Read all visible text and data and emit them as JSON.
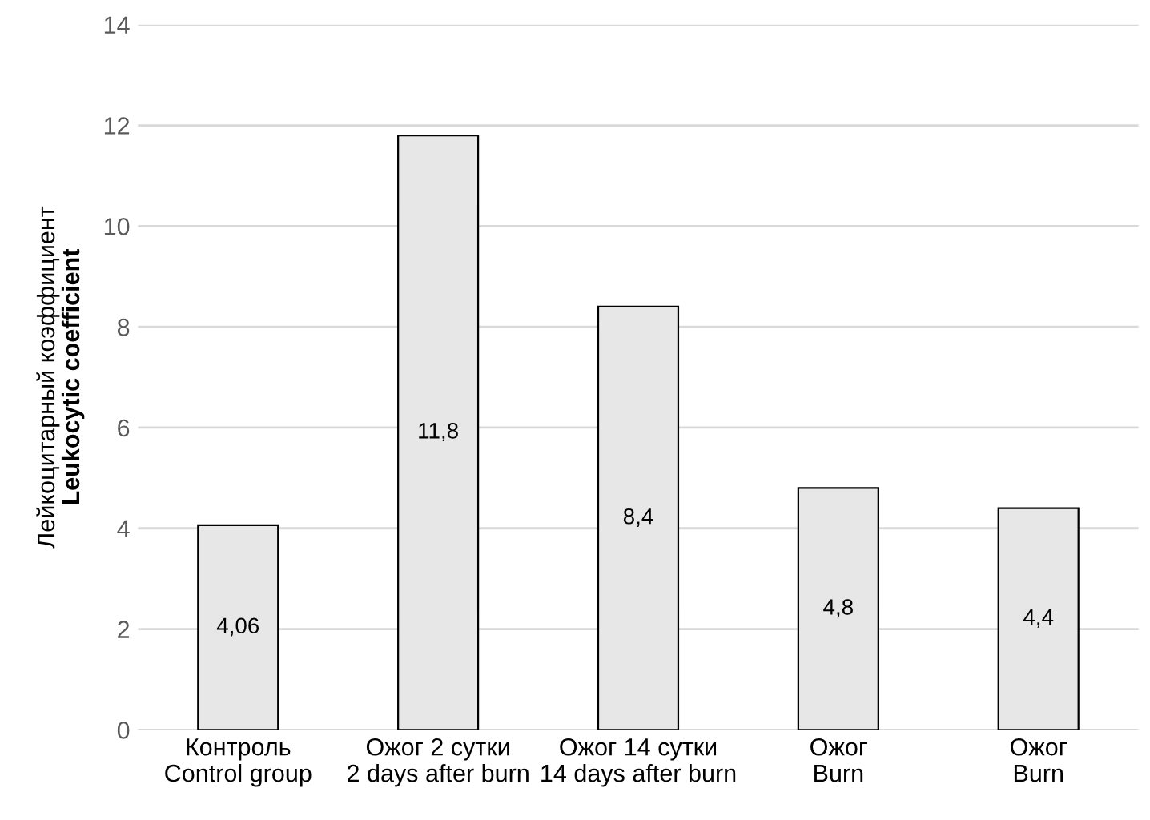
{
  "chart_data": {
    "type": "bar",
    "ylabel": "Лейкоцитарный коэффициент\nLeukocytic coefficient",
    "categories": [
      "Контроль\nControl group",
      "Ожог 2 сутки\n2 days after burn",
      "Ожог 14 сутки\n14 days after burn",
      "Ожог\nBurn",
      "Ожог\nBurn"
    ],
    "values": [
      4.06,
      11.8,
      8.4,
      4.8,
      4.4
    ],
    "value_labels": [
      "4,06",
      "11,8",
      "8,4",
      "4,8",
      "4,4"
    ],
    "color": "#e7e7e7",
    "ylim": [
      0,
      14
    ],
    "yticks": [
      0,
      2,
      4,
      6,
      8,
      10,
      12,
      14
    ],
    "grid": "y"
  }
}
